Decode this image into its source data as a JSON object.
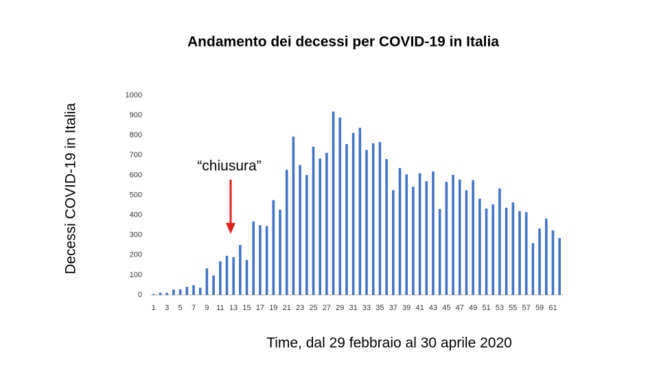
{
  "chart_data": {
    "type": "bar",
    "title": "Andamento dei decessi per COVID-19 in Italia",
    "y_label": "Decessi COVID-19 in Italia",
    "x_label": "Time, dal 29 febbraio al 30 aprile 2020",
    "annotation": "“chiusura”",
    "categories": [
      "1",
      null,
      "3",
      null,
      "5",
      null,
      "7",
      null,
      "9",
      null,
      "11",
      null,
      "13",
      null,
      "15",
      null,
      "17",
      null,
      "19",
      null,
      "21",
      null,
      "23",
      null,
      "25",
      null,
      "27",
      null,
      "29",
      null,
      "31",
      null,
      "33",
      null,
      "35",
      null,
      "37",
      null,
      "39",
      null,
      "41",
      null,
      "43",
      null,
      "45",
      null,
      "47",
      null,
      "49",
      null,
      "51",
      null,
      "53",
      null,
      "55",
      null,
      "57",
      null,
      "59",
      null,
      "61",
      null
    ],
    "values": [
      5,
      12,
      11,
      27,
      28,
      41,
      49,
      36,
      133,
      97,
      168,
      196,
      189,
      250,
      175,
      368,
      349,
      345,
      475,
      427,
      627,
      793,
      651,
      601,
      743,
      683,
      712,
      919,
      889,
      756,
      812,
      837,
      727,
      760,
      766,
      681,
      525,
      636,
      604,
      542,
      610,
      570,
      619,
      431,
      566,
      602,
      578,
      525,
      575,
      482,
      433,
      454,
      534,
      437,
      464,
      420,
      415,
      260,
      333,
      382,
      323,
      285
    ],
    "color": "#4472c4",
    "ylim": [
      0,
      1000
    ],
    "yticks": [
      0,
      100,
      200,
      300,
      400,
      500,
      600,
      700,
      800,
      900,
      1000
    ],
    "grid": false
  }
}
